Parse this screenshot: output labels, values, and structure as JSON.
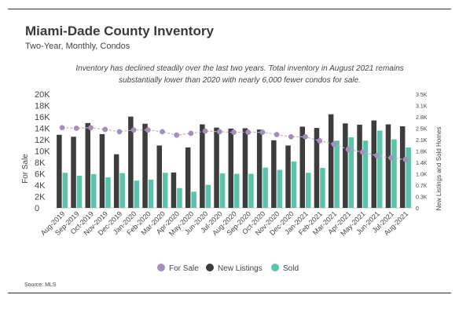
{
  "header": {
    "title": "Miami-Dade County Inventory",
    "subtitle": "Two-Year, Monthly, Condos"
  },
  "annotation": "Inventory has declined steadily over the last two years. Total inventory in August 2021 remains substantially lower than 2020 with nearly 6,000 fewer condos for sale.",
  "source": "Source: MLS",
  "colors": {
    "for_sale": "#a390b8",
    "new_listings": "#3d3d3d",
    "sold": "#5cc3a9",
    "line": "#b8b8b8"
  },
  "chart_data": {
    "type": "bar",
    "categories": [
      "Aug-2019",
      "Sep-2019",
      "Oct-2019",
      "Nov-2019",
      "Dec-2019",
      "Jan-2020",
      "Feb-2020",
      "Mar-2020",
      "Apr-2020",
      "May-2020",
      "Jun-2020",
      "Jul-2020",
      "Aug-2020",
      "Sep-2020",
      "Oct-2020",
      "Nov-2020",
      "Dec-2020",
      "Jan-2021",
      "Feb-2021",
      "Mar-2021",
      "Apr-2021",
      "May-2021",
      "Jun-2021",
      "Jul-2021",
      "Aug-2021"
    ],
    "ylabel": "For Sale",
    "y2label": "New Listings and Sold Homes",
    "ylim": [
      0,
      20000
    ],
    "y_ticks": [
      "0",
      "2K",
      "4K",
      "6K",
      "8K",
      "10K",
      "12K",
      "14K",
      "16K",
      "18K",
      "20K"
    ],
    "y2lim": [
      0,
      3500
    ],
    "y2_ticks": [
      "0",
      "0.3K",
      "0.7K",
      "1.0K",
      "1.4K",
      "1.8K",
      "2.1K",
      "2.5K",
      "2.8K",
      "3.1K",
      "3.5K"
    ],
    "legend": {
      "position": "bottom",
      "items": [
        "For Sale",
        "New Listings",
        "Sold"
      ]
    },
    "series": [
      {
        "name": "For Sale",
        "type": "line",
        "axis": "left",
        "values": [
          14100,
          14000,
          14100,
          13800,
          13400,
          13700,
          13700,
          13400,
          12800,
          13100,
          13500,
          13400,
          13300,
          13300,
          13300,
          12900,
          12500,
          12500,
          11800,
          11200,
          10300,
          9800,
          9200,
          8800,
          8500
        ]
      },
      {
        "name": "New Listings",
        "type": "bar",
        "axis": "right",
        "values": [
          2250,
          2190,
          2610,
          2270,
          1650,
          2810,
          2590,
          1920,
          1090,
          1860,
          2570,
          2470,
          2440,
          2450,
          2410,
          2080,
          1920,
          2500,
          2460,
          2880,
          2600,
          2560,
          2690,
          2570,
          2510
        ]
      },
      {
        "name": "Sold",
        "type": "bar",
        "axis": "right",
        "values": [
          1080,
          990,
          1040,
          940,
          1070,
          840,
          870,
          1080,
          610,
          500,
          710,
          1060,
          1050,
          1050,
          1240,
          1170,
          1430,
          1080,
          1230,
          2070,
          2170,
          2070,
          2380,
          2110,
          1860
        ]
      }
    ]
  }
}
